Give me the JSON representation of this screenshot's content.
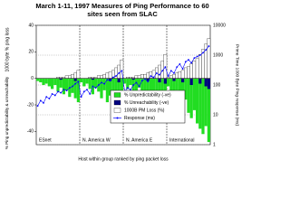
{
  "chart_data": {
    "type": "combo",
    "title": "March 1-11, 1997 Measures of Ping Performance to 60 sites seen from SLAC",
    "ylabel_loss": "1000 byte % ping loss",
    "ylabel_unpred": "% Ping unpredictability & unreachability",
    "y2label": "Prime Time 1000 Byte Ping response (ms)",
    "xlabel": "Host within group ranked by ping packet loss",
    "groups": [
      "ESnet",
      "N. America W",
      "N. America E",
      "International"
    ],
    "categories": [
      null,
      null,
      null,
      null,
      null,
      null,
      null,
      null,
      null,
      null,
      null,
      null,
      null,
      null,
      null,
      null,
      null,
      null,
      null,
      null,
      null,
      null,
      null,
      null,
      null,
      null,
      null,
      null,
      null,
      null,
      null,
      null,
      null,
      null,
      null,
      null,
      null,
      null,
      null,
      null,
      null,
      null,
      null,
      null,
      null,
      null,
      null,
      null,
      null,
      null,
      null,
      null,
      null,
      null,
      null,
      null,
      null,
      null,
      null,
      null
    ],
    "ylim": [
      -50,
      40
    ],
    "yticks": [
      -40,
      -20,
      0,
      20,
      40
    ],
    "y2lim": [
      1,
      10000
    ],
    "y2ticks": [
      1,
      10,
      100,
      1000,
      10000
    ],
    "y2log": true,
    "series": [
      {
        "name": "% Unpredictability (-ve)",
        "kind": "bar",
        "color": "#22dd22",
        "values": [
          -2,
          -3,
          -5,
          -4,
          -6,
          -8,
          -5,
          -10,
          -7,
          -12,
          -9,
          -14,
          -11,
          -15,
          -18,
          -3,
          -6,
          -4,
          -8,
          -12,
          -7,
          -10,
          -15,
          -9,
          -18,
          -13,
          -20,
          -16,
          -22,
          -26,
          -4,
          -8,
          -5,
          -10,
          -14,
          -7,
          -12,
          -18,
          -11,
          -20,
          -15,
          -24,
          -19,
          -28,
          -32,
          -6,
          -10,
          -14,
          -9,
          -18,
          -22,
          -16,
          -26,
          -30,
          -24,
          -34,
          -38,
          -42,
          -36,
          -48
        ]
      },
      {
        "name": "% Unreachability (-ve)",
        "kind": "bar",
        "color": "#000080",
        "values": [
          0,
          0,
          0,
          0,
          0,
          0,
          0,
          0,
          -1,
          0,
          0,
          0,
          0,
          -2,
          0,
          0,
          0,
          0,
          0,
          -1,
          0,
          0,
          0,
          0,
          0,
          -2,
          0,
          0,
          -3,
          0,
          0,
          0,
          0,
          -1,
          0,
          0,
          0,
          0,
          -2,
          0,
          0,
          0,
          -3,
          0,
          -4,
          0,
          0,
          -2,
          0,
          0,
          -3,
          0,
          0,
          -5,
          0,
          0,
          -4,
          0,
          -6,
          -8
        ]
      },
      {
        "name": "1000B PM Loss (%)",
        "kind": "bar",
        "color": "#ffffff",
        "values": [
          0,
          0,
          0,
          0,
          0,
          0,
          0,
          1,
          1,
          1,
          2,
          2,
          3,
          4,
          6,
          0,
          0,
          0,
          1,
          1,
          1,
          2,
          2,
          3,
          4,
          5,
          6,
          8,
          10,
          14,
          0,
          1,
          1,
          1,
          2,
          2,
          3,
          3,
          4,
          5,
          6,
          8,
          10,
          13,
          18,
          1,
          2,
          3,
          4,
          5,
          6,
          8,
          9,
          11,
          13,
          15,
          18,
          22,
          26,
          30
        ]
      },
      {
        "name": "Response (ms)",
        "kind": "line",
        "axis": "y2",
        "color": "#0000ff",
        "values": [
          20,
          30,
          25,
          40,
          35,
          50,
          45,
          60,
          55,
          70,
          65,
          80,
          90,
          110,
          130,
          40,
          60,
          70,
          50,
          90,
          80,
          100,
          120,
          110,
          150,
          140,
          180,
          200,
          250,
          300,
          60,
          80,
          70,
          100,
          120,
          90,
          140,
          160,
          130,
          200,
          180,
          250,
          220,
          300,
          400,
          200,
          300,
          250,
          400,
          500,
          350,
          600,
          700,
          550,
          800,
          900,
          1000,
          1200,
          1500,
          2000
        ]
      }
    ]
  }
}
